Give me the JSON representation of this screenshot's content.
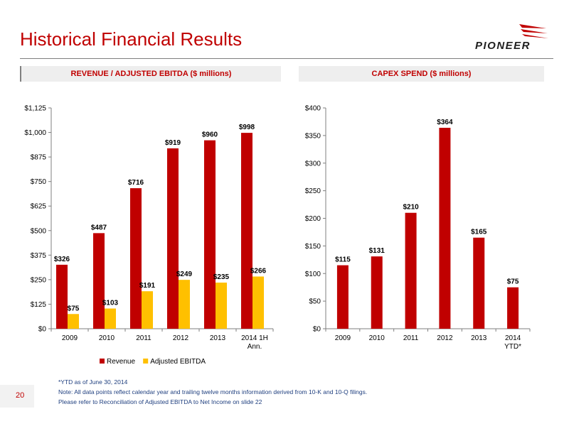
{
  "page": {
    "title": "Historical Financial Results",
    "logo_text": "PIONEER",
    "page_number": "20",
    "footnotes": [
      "*YTD as of June 30, 2014",
      "Note: All data points reflect calendar year and trailing twelve months information derived from 10-K and 10-Q filings.",
      "Please refer to Reconciliation of Adjusted EBITDA to Net Income on slide 22"
    ]
  },
  "colors": {
    "accent": "#c00000",
    "revenue": "#c00000",
    "ebitda": "#ffc000",
    "axis": "#7f7f7f",
    "footnote": "#1f3f7f"
  },
  "chart_data": [
    {
      "type": "bar",
      "title": "REVENUE / ADJUSTED EBITDA ($ millions)",
      "categories": [
        "2009",
        "2010",
        "2011",
        "2012",
        "2013",
        "2014 1H Ann."
      ],
      "series": [
        {
          "name": "Revenue",
          "values": [
            326,
            487,
            716,
            919,
            960,
            998
          ],
          "labels": [
            "$326",
            "$487",
            "$716",
            "$919",
            "$960",
            "$998"
          ]
        },
        {
          "name": "Adjusted EBITDA",
          "values": [
            75,
            103,
            191,
            249,
            235,
            266
          ],
          "labels": [
            "$75",
            "$103",
            "$191",
            "$249",
            "$235",
            "$266"
          ]
        }
      ],
      "yticks": [
        "$0",
        "$125",
        "$250",
        "$375",
        "$500",
        "$625",
        "$750",
        "$875",
        "$1,000",
        "$1,125"
      ],
      "ylim": [
        0,
        1125
      ],
      "legend": "bottom"
    },
    {
      "type": "bar",
      "title": "CAPEX SPEND ($ millions)",
      "categories": [
        "2009",
        "2010",
        "2011",
        "2012",
        "2013",
        "2014 YTD*"
      ],
      "series": [
        {
          "values": [
            115,
            131,
            210,
            364,
            165,
            75
          ],
          "labels": [
            "$115",
            "$131",
            "$210",
            "$364",
            "$165",
            "$75"
          ]
        }
      ],
      "yticks": [
        "$0",
        "$50",
        "$100",
        "$150",
        "$200",
        "$250",
        "$300",
        "$350",
        "$400"
      ],
      "ylim": [
        0,
        400
      ]
    }
  ]
}
